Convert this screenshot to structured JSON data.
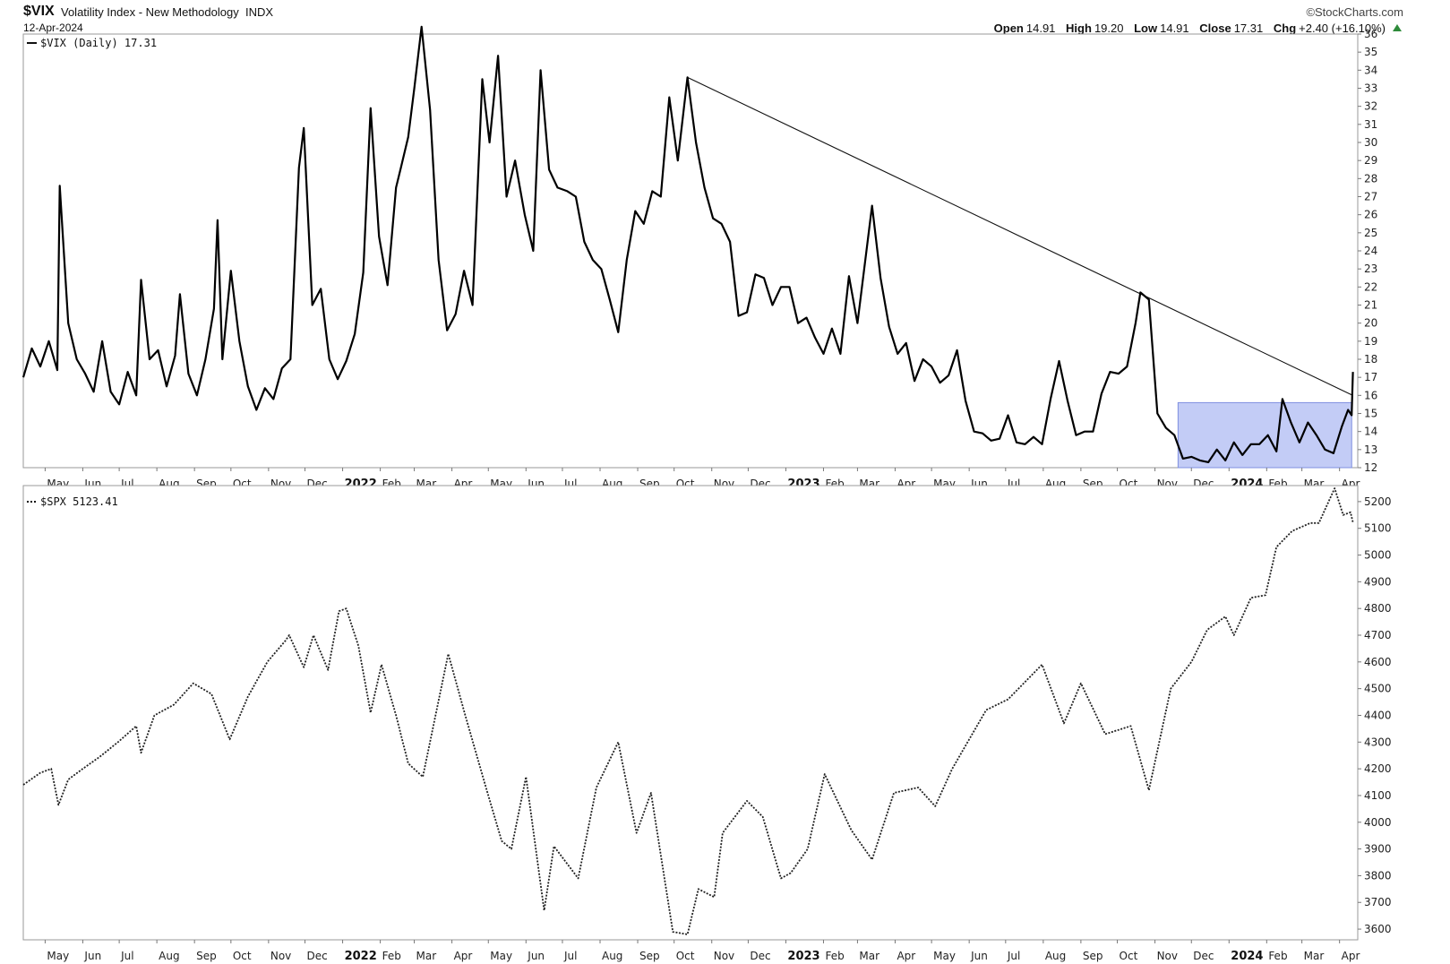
{
  "header": {
    "symbol": "$VIX",
    "description": "Volatility Index - New Methodology",
    "exchange": "INDX",
    "date": "12-Apr-2024",
    "brand": "©StockCharts.com",
    "ohlc": [
      {
        "label": "Open",
        "value": "14.91"
      },
      {
        "label": "High",
        "value": "19.20"
      },
      {
        "label": "Low",
        "value": "14.91"
      },
      {
        "label": "Close",
        "value": "17.31"
      },
      {
        "label": "Chg",
        "value": "+2.40 (+16.10%)"
      }
    ],
    "change_color": "#2e8b3a"
  },
  "chart_data": [
    {
      "type": "line",
      "legend": "$VIX (Daily) 17.31",
      "line_style": "solid",
      "color": "#000000",
      "ylim": [
        12,
        36
      ],
      "yticks": [
        "12",
        "13",
        "14",
        "15",
        "16",
        "17",
        "18",
        "19",
        "20",
        "21",
        "22",
        "23",
        "24",
        "25",
        "26",
        "27",
        "28",
        "29",
        "30",
        "31",
        "32",
        "33",
        "34",
        "35",
        "36"
      ],
      "xtick_labels": [
        "May",
        "Jun",
        "Jul",
        "Aug",
        "Sep",
        "Oct",
        "Nov",
        "Dec",
        "2022",
        "Feb",
        "Mar",
        "Apr",
        "May",
        "Jun",
        "Jul",
        "Aug",
        "Sep",
        "Oct",
        "Nov",
        "Dec",
        "2023",
        "Feb",
        "Mar",
        "Apr",
        "May",
        "Jun",
        "Jul",
        "Aug",
        "Sep",
        "Oct",
        "Nov",
        "Dec",
        "2024",
        "Feb",
        "Mar",
        "Apr"
      ],
      "x_range": [
        "2021-04-13",
        "2024-04-16"
      ],
      "points": [
        [
          "2021-04-13",
          17.0
        ],
        [
          "2021-04-20",
          18.6
        ],
        [
          "2021-04-27",
          17.6
        ],
        [
          "2021-05-04",
          19.0
        ],
        [
          "2021-05-11",
          17.4
        ],
        [
          "2021-05-13",
          27.6
        ],
        [
          "2021-05-20",
          20.0
        ],
        [
          "2021-05-27",
          18.0
        ],
        [
          "2021-06-03",
          17.2
        ],
        [
          "2021-06-10",
          16.2
        ],
        [
          "2021-06-17",
          19.0
        ],
        [
          "2021-06-24",
          16.2
        ],
        [
          "2021-07-01",
          15.5
        ],
        [
          "2021-07-08",
          17.3
        ],
        [
          "2021-07-15",
          16.0
        ],
        [
          "2021-07-19",
          22.4
        ],
        [
          "2021-07-26",
          18.0
        ],
        [
          "2021-08-02",
          18.5
        ],
        [
          "2021-08-09",
          16.5
        ],
        [
          "2021-08-16",
          18.2
        ],
        [
          "2021-08-20",
          21.6
        ],
        [
          "2021-08-27",
          17.2
        ],
        [
          "2021-09-03",
          16.0
        ],
        [
          "2021-09-10",
          18.0
        ],
        [
          "2021-09-17",
          20.8
        ],
        [
          "2021-09-20",
          25.7
        ],
        [
          "2021-09-24",
          18.0
        ],
        [
          "2021-10-01",
          22.9
        ],
        [
          "2021-10-08",
          19.0
        ],
        [
          "2021-10-15",
          16.5
        ],
        [
          "2021-10-22",
          15.2
        ],
        [
          "2021-10-29",
          16.4
        ],
        [
          "2021-11-05",
          15.8
        ],
        [
          "2021-11-12",
          17.5
        ],
        [
          "2021-11-19",
          18.0
        ],
        [
          "2021-11-26",
          28.6
        ],
        [
          "2021-11-30",
          30.8
        ],
        [
          "2021-12-07",
          21.0
        ],
        [
          "2021-12-14",
          21.9
        ],
        [
          "2021-12-21",
          18.0
        ],
        [
          "2021-12-28",
          16.9
        ],
        [
          "2022-01-04",
          17.9
        ],
        [
          "2022-01-11",
          19.4
        ],
        [
          "2022-01-18",
          22.8
        ],
        [
          "2022-01-24",
          31.9
        ],
        [
          "2022-01-31",
          24.8
        ],
        [
          "2022-02-07",
          22.1
        ],
        [
          "2022-02-14",
          27.5
        ],
        [
          "2022-02-18",
          28.6
        ],
        [
          "2022-02-24",
          30.3
        ],
        [
          "2022-03-01",
          33.0
        ],
        [
          "2022-03-07",
          36.4
        ],
        [
          "2022-03-14",
          31.8
        ],
        [
          "2022-03-21",
          23.5
        ],
        [
          "2022-03-28",
          19.6
        ],
        [
          "2022-04-04",
          20.5
        ],
        [
          "2022-04-11",
          22.9
        ],
        [
          "2022-04-18",
          21.0
        ],
        [
          "2022-04-26",
          33.5
        ],
        [
          "2022-05-02",
          30.0
        ],
        [
          "2022-05-09",
          34.8
        ],
        [
          "2022-05-16",
          27.0
        ],
        [
          "2022-05-23",
          29.0
        ],
        [
          "2022-05-31",
          26.0
        ],
        [
          "2022-06-07",
          24.0
        ],
        [
          "2022-06-13",
          34.0
        ],
        [
          "2022-06-20",
          28.5
        ],
        [
          "2022-06-27",
          27.5
        ],
        [
          "2022-07-05",
          27.3
        ],
        [
          "2022-07-12",
          27.0
        ],
        [
          "2022-07-19",
          24.5
        ],
        [
          "2022-07-26",
          23.5
        ],
        [
          "2022-08-02",
          23.0
        ],
        [
          "2022-08-09",
          21.3
        ],
        [
          "2022-08-16",
          19.5
        ],
        [
          "2022-08-23",
          23.5
        ],
        [
          "2022-08-30",
          26.2
        ],
        [
          "2022-09-06",
          25.5
        ],
        [
          "2022-09-13",
          27.3
        ],
        [
          "2022-09-20",
          27.0
        ],
        [
          "2022-09-27",
          32.5
        ],
        [
          "2022-10-04",
          29.0
        ],
        [
          "2022-10-12",
          33.6
        ],
        [
          "2022-10-19",
          30.0
        ],
        [
          "2022-10-26",
          27.5
        ],
        [
          "2022-11-02",
          25.8
        ],
        [
          "2022-11-09",
          25.5
        ],
        [
          "2022-11-16",
          24.5
        ],
        [
          "2022-11-23",
          20.4
        ],
        [
          "2022-11-30",
          20.6
        ],
        [
          "2022-12-07",
          22.7
        ],
        [
          "2022-12-14",
          22.5
        ],
        [
          "2022-12-21",
          21.0
        ],
        [
          "2022-12-28",
          22.0
        ],
        [
          "2023-01-04",
          22.0
        ],
        [
          "2023-01-11",
          20.0
        ],
        [
          "2023-01-18",
          20.3
        ],
        [
          "2023-01-25",
          19.2
        ],
        [
          "2023-02-01",
          18.3
        ],
        [
          "2023-02-08",
          19.7
        ],
        [
          "2023-02-15",
          18.3
        ],
        [
          "2023-02-22",
          22.6
        ],
        [
          "2023-03-01",
          20.0
        ],
        [
          "2023-03-13",
          26.5
        ],
        [
          "2023-03-20",
          22.5
        ],
        [
          "2023-03-27",
          19.8
        ],
        [
          "2023-04-03",
          18.3
        ],
        [
          "2023-04-10",
          18.9
        ],
        [
          "2023-04-17",
          16.8
        ],
        [
          "2023-04-24",
          18.0
        ],
        [
          "2023-05-01",
          17.6
        ],
        [
          "2023-05-08",
          16.7
        ],
        [
          "2023-05-15",
          17.1
        ],
        [
          "2023-05-22",
          18.5
        ],
        [
          "2023-05-29",
          15.7
        ],
        [
          "2023-06-05",
          14.0
        ],
        [
          "2023-06-12",
          13.9
        ],
        [
          "2023-06-19",
          13.5
        ],
        [
          "2023-06-26",
          13.6
        ],
        [
          "2023-07-03",
          14.9
        ],
        [
          "2023-07-10",
          13.4
        ],
        [
          "2023-07-17",
          13.3
        ],
        [
          "2023-07-24",
          13.7
        ],
        [
          "2023-07-31",
          13.3
        ],
        [
          "2023-08-07",
          15.8
        ],
        [
          "2023-08-14",
          17.9
        ],
        [
          "2023-08-21",
          15.7
        ],
        [
          "2023-08-28",
          13.8
        ],
        [
          "2023-09-04",
          14.0
        ],
        [
          "2023-09-11",
          14.0
        ],
        [
          "2023-09-18",
          16.1
        ],
        [
          "2023-09-25",
          17.3
        ],
        [
          "2023-10-02",
          17.2
        ],
        [
          "2023-10-09",
          17.6
        ],
        [
          "2023-10-16",
          20.0
        ],
        [
          "2023-10-20",
          21.7
        ],
        [
          "2023-10-27",
          21.3
        ],
        [
          "2023-11-03",
          15.0
        ],
        [
          "2023-11-10",
          14.2
        ],
        [
          "2023-11-17",
          13.8
        ],
        [
          "2023-11-24",
          12.5
        ],
        [
          "2023-12-01",
          12.6
        ],
        [
          "2023-12-08",
          12.4
        ],
        [
          "2023-12-15",
          12.3
        ],
        [
          "2023-12-22",
          13.0
        ],
        [
          "2023-12-29",
          12.4
        ],
        [
          "2024-01-05",
          13.4
        ],
        [
          "2024-01-12",
          12.7
        ],
        [
          "2024-01-19",
          13.3
        ],
        [
          "2024-01-26",
          13.3
        ],
        [
          "2024-02-02",
          13.8
        ],
        [
          "2024-02-09",
          12.9
        ],
        [
          "2024-02-14",
          15.8
        ],
        [
          "2024-02-21",
          14.5
        ],
        [
          "2024-02-28",
          13.4
        ],
        [
          "2024-03-06",
          14.5
        ],
        [
          "2024-03-13",
          13.8
        ],
        [
          "2024-03-20",
          13.0
        ],
        [
          "2024-03-27",
          12.8
        ],
        [
          "2024-04-03",
          14.3
        ],
        [
          "2024-04-08",
          15.2
        ],
        [
          "2024-04-11",
          14.9
        ],
        [
          "2024-04-12",
          17.3
        ]
      ],
      "trendline": [
        [
          "2022-10-12",
          33.6
        ],
        [
          "2024-04-12",
          16.0
        ]
      ],
      "highlight_box": {
        "x": [
          "2023-11-20",
          "2024-04-11"
        ],
        "y": [
          12.0,
          15.6
        ],
        "color": "#b8c3f5"
      }
    },
    {
      "type": "line",
      "legend": "$SPX 5123.41",
      "line_style": "dotted",
      "color": "#222222",
      "ylim": [
        3560,
        5260
      ],
      "yticks": [
        "3600",
        "3700",
        "3800",
        "3900",
        "4000",
        "4100",
        "4200",
        "4300",
        "4400",
        "4500",
        "4600",
        "4700",
        "4800",
        "4900",
        "5000",
        "5100",
        "5200"
      ],
      "xtick_labels": [
        "May",
        "Jun",
        "Jul",
        "Aug",
        "Sep",
        "Oct",
        "Nov",
        "Dec",
        "2022",
        "Feb",
        "Mar",
        "Apr",
        "May",
        "Jun",
        "Jul",
        "Aug",
        "Sep",
        "Oct",
        "Nov",
        "Dec",
        "2023",
        "Feb",
        "Mar",
        "Apr",
        "May",
        "Jun",
        "Jul",
        "Aug",
        "Sep",
        "Oct",
        "Nov",
        "Dec",
        "2024",
        "Feb",
        "Mar",
        "Apr"
      ],
      "x_range": [
        "2021-04-13",
        "2024-04-16"
      ],
      "points": [
        [
          "2021-04-13",
          4140
        ],
        [
          "2021-04-27",
          4185
        ],
        [
          "2021-05-06",
          4200
        ],
        [
          "2021-05-12",
          4065
        ],
        [
          "2021-05-20",
          4160
        ],
        [
          "2021-06-01",
          4200
        ],
        [
          "2021-06-15",
          4245
        ],
        [
          "2021-06-30",
          4300
        ],
        [
          "2021-07-15",
          4360
        ],
        [
          "2021-07-19",
          4260
        ],
        [
          "2021-07-30",
          4400
        ],
        [
          "2021-08-15",
          4440
        ],
        [
          "2021-08-31",
          4520
        ],
        [
          "2021-09-15",
          4480
        ],
        [
          "2021-09-30",
          4310
        ],
        [
          "2021-10-15",
          4470
        ],
        [
          "2021-10-31",
          4600
        ],
        [
          "2021-11-15",
          4680
        ],
        [
          "2021-11-18",
          4700
        ],
        [
          "2021-11-30",
          4580
        ],
        [
          "2021-12-08",
          4700
        ],
        [
          "2021-12-20",
          4570
        ],
        [
          "2021-12-29",
          4790
        ],
        [
          "2022-01-04",
          4800
        ],
        [
          "2022-01-14",
          4660
        ],
        [
          "2022-01-24",
          4410
        ],
        [
          "2022-02-02",
          4590
        ],
        [
          "2022-02-14",
          4400
        ],
        [
          "2022-02-24",
          4220
        ],
        [
          "2022-03-08",
          4170
        ],
        [
          "2022-03-29",
          4630
        ],
        [
          "2022-04-12",
          4400
        ],
        [
          "2022-04-29",
          4130
        ],
        [
          "2022-05-12",
          3930
        ],
        [
          "2022-05-20",
          3900
        ],
        [
          "2022-06-01",
          4170
        ],
        [
          "2022-06-16",
          3670
        ],
        [
          "2022-06-24",
          3910
        ],
        [
          "2022-07-14",
          3790
        ],
        [
          "2022-07-29",
          4130
        ],
        [
          "2022-08-16",
          4300
        ],
        [
          "2022-08-31",
          3960
        ],
        [
          "2022-09-12",
          4110
        ],
        [
          "2022-09-30",
          3590
        ],
        [
          "2022-10-12",
          3580
        ],
        [
          "2022-10-21",
          3750
        ],
        [
          "2022-11-03",
          3720
        ],
        [
          "2022-11-10",
          3960
        ],
        [
          "2022-11-30",
          4080
        ],
        [
          "2022-12-13",
          4020
        ],
        [
          "2022-12-28",
          3790
        ],
        [
          "2023-01-05",
          3810
        ],
        [
          "2023-01-19",
          3900
        ],
        [
          "2023-02-02",
          4180
        ],
        [
          "2023-02-24",
          3970
        ],
        [
          "2023-03-13",
          3860
        ],
        [
          "2023-03-31",
          4110
        ],
        [
          "2023-04-20",
          4130
        ],
        [
          "2023-05-04",
          4060
        ],
        [
          "2023-05-18",
          4200
        ],
        [
          "2023-06-15",
          4420
        ],
        [
          "2023-07-03",
          4460
        ],
        [
          "2023-07-31",
          4590
        ],
        [
          "2023-08-18",
          4370
        ],
        [
          "2023-09-01",
          4520
        ],
        [
          "2023-09-21",
          4330
        ],
        [
          "2023-10-12",
          4360
        ],
        [
          "2023-10-27",
          4120
        ],
        [
          "2023-11-14",
          4500
        ],
        [
          "2023-12-01",
          4600
        ],
        [
          "2023-12-14",
          4720
        ],
        [
          "2023-12-29",
          4770
        ],
        [
          "2024-01-05",
          4700
        ],
        [
          "2024-01-19",
          4840
        ],
        [
          "2024-01-31",
          4850
        ],
        [
          "2024-02-09",
          5030
        ],
        [
          "2024-02-22",
          5090
        ],
        [
          "2024-03-08",
          5120
        ],
        [
          "2024-03-15",
          5120
        ],
        [
          "2024-03-28",
          5250
        ],
        [
          "2024-04-04",
          5150
        ],
        [
          "2024-04-10",
          5160
        ],
        [
          "2024-04-12",
          5123
        ]
      ]
    }
  ]
}
